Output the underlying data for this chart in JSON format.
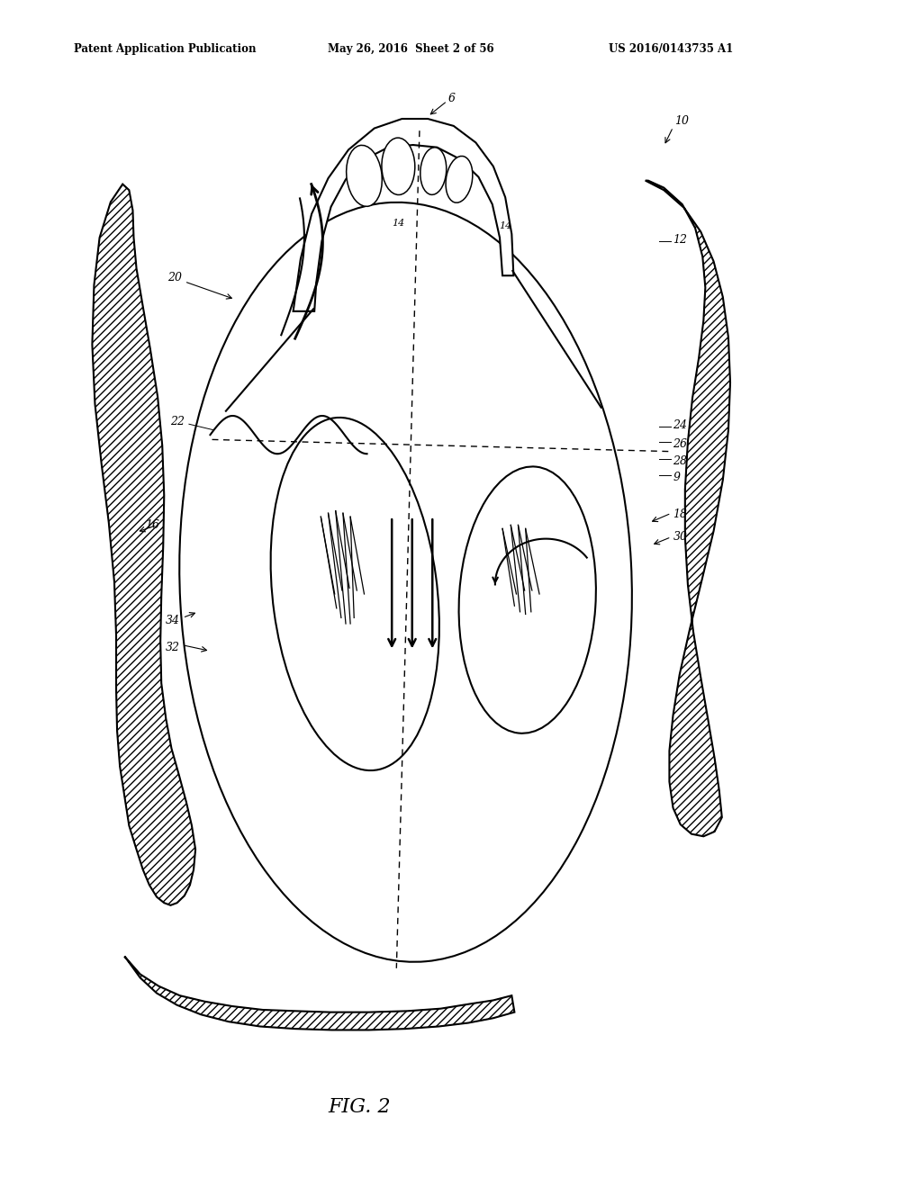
{
  "header_left": "Patent Application Publication",
  "header_mid": "May 26, 2016  Sheet 2 of 56",
  "header_right": "US 2016/0143735 A1",
  "figure_label": "FIG. 2",
  "bg_color": "#ffffff",
  "line_color": "#000000",
  "lw_main": 1.5,
  "lw_thick": 2.0,
  "label_fontsize": 9,
  "label_14_fontsize": 8,
  "header_fontsize": 8.5,
  "fig_label_fontsize": 16
}
